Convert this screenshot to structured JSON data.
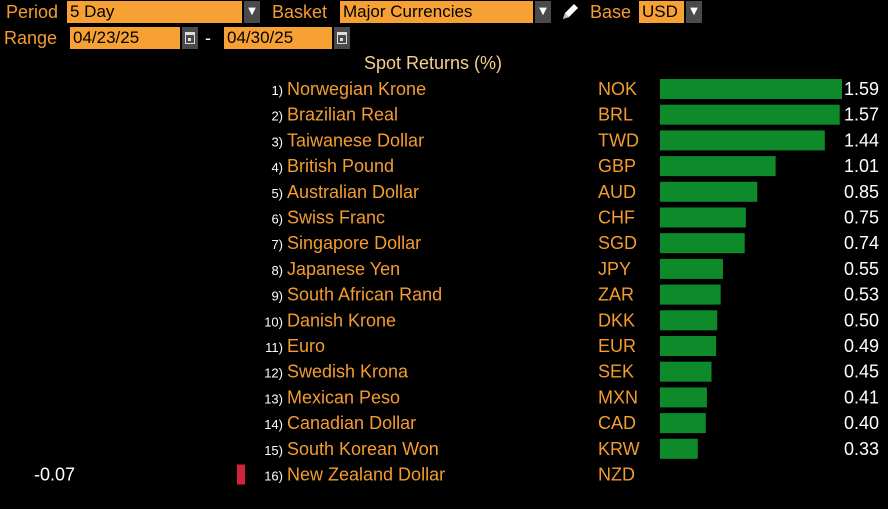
{
  "header": {
    "period_label": "Period",
    "period_value": "5 Day",
    "basket_label": "Basket",
    "basket_value": "Major Currencies",
    "base_label": "Base",
    "base_value": "USD",
    "range_label": "Range",
    "range_start": "04/23/25",
    "range_sep": "-",
    "range_end": "04/30/25"
  },
  "colors": {
    "accent": "#f39c2f",
    "field_bg": "#f7a135",
    "positive_bar": "#0e8a2a",
    "negative_bar": "#d1243a"
  },
  "icons": {
    "dropdown": "chevron-down-icon",
    "calendar": "calendar-icon",
    "edit": "pencil-icon"
  },
  "chart_data": {
    "type": "bar",
    "title": "Spot Returns (%)",
    "orientation": "horizontal",
    "rows": [
      {
        "rank": "1)",
        "name": "Norwegian Krone",
        "code": "NOK",
        "value": 1.59,
        "label": "1.59"
      },
      {
        "rank": "2)",
        "name": "Brazilian Real",
        "code": "BRL",
        "value": 1.57,
        "label": "1.57"
      },
      {
        "rank": "3)",
        "name": "Taiwanese Dollar",
        "code": "TWD",
        "value": 1.44,
        "label": "1.44"
      },
      {
        "rank": "4)",
        "name": "British Pound",
        "code": "GBP",
        "value": 1.01,
        "label": "1.01"
      },
      {
        "rank": "5)",
        "name": "Australian Dollar",
        "code": "AUD",
        "value": 0.85,
        "label": "0.85"
      },
      {
        "rank": "6)",
        "name": "Swiss Franc",
        "code": "CHF",
        "value": 0.75,
        "label": "0.75"
      },
      {
        "rank": "7)",
        "name": "Singapore Dollar",
        "code": "SGD",
        "value": 0.74,
        "label": "0.74"
      },
      {
        "rank": "8)",
        "name": "Japanese Yen",
        "code": "JPY",
        "value": 0.55,
        "label": "0.55"
      },
      {
        "rank": "9)",
        "name": "South African Rand",
        "code": "ZAR",
        "value": 0.53,
        "label": "0.53"
      },
      {
        "rank": "10)",
        "name": "Danish Krone",
        "code": "DKK",
        "value": 0.5,
        "label": "0.50"
      },
      {
        "rank": "11)",
        "name": "Euro",
        "code": "EUR",
        "value": 0.49,
        "label": "0.49"
      },
      {
        "rank": "12)",
        "name": "Swedish Krona",
        "code": "SEK",
        "value": 0.45,
        "label": "0.45"
      },
      {
        "rank": "13)",
        "name": "Mexican Peso",
        "code": "MXN",
        "value": 0.41,
        "label": "0.41"
      },
      {
        "rank": "14)",
        "name": "Canadian Dollar",
        "code": "CAD",
        "value": 0.4,
        "label": "0.40"
      },
      {
        "rank": "15)",
        "name": "South Korean Won",
        "code": "KRW",
        "value": 0.33,
        "label": "0.33"
      },
      {
        "rank": "16)",
        "name": "New Zealand Dollar",
        "code": "NZD",
        "value": -0.07,
        "label": "-0.07"
      }
    ]
  }
}
